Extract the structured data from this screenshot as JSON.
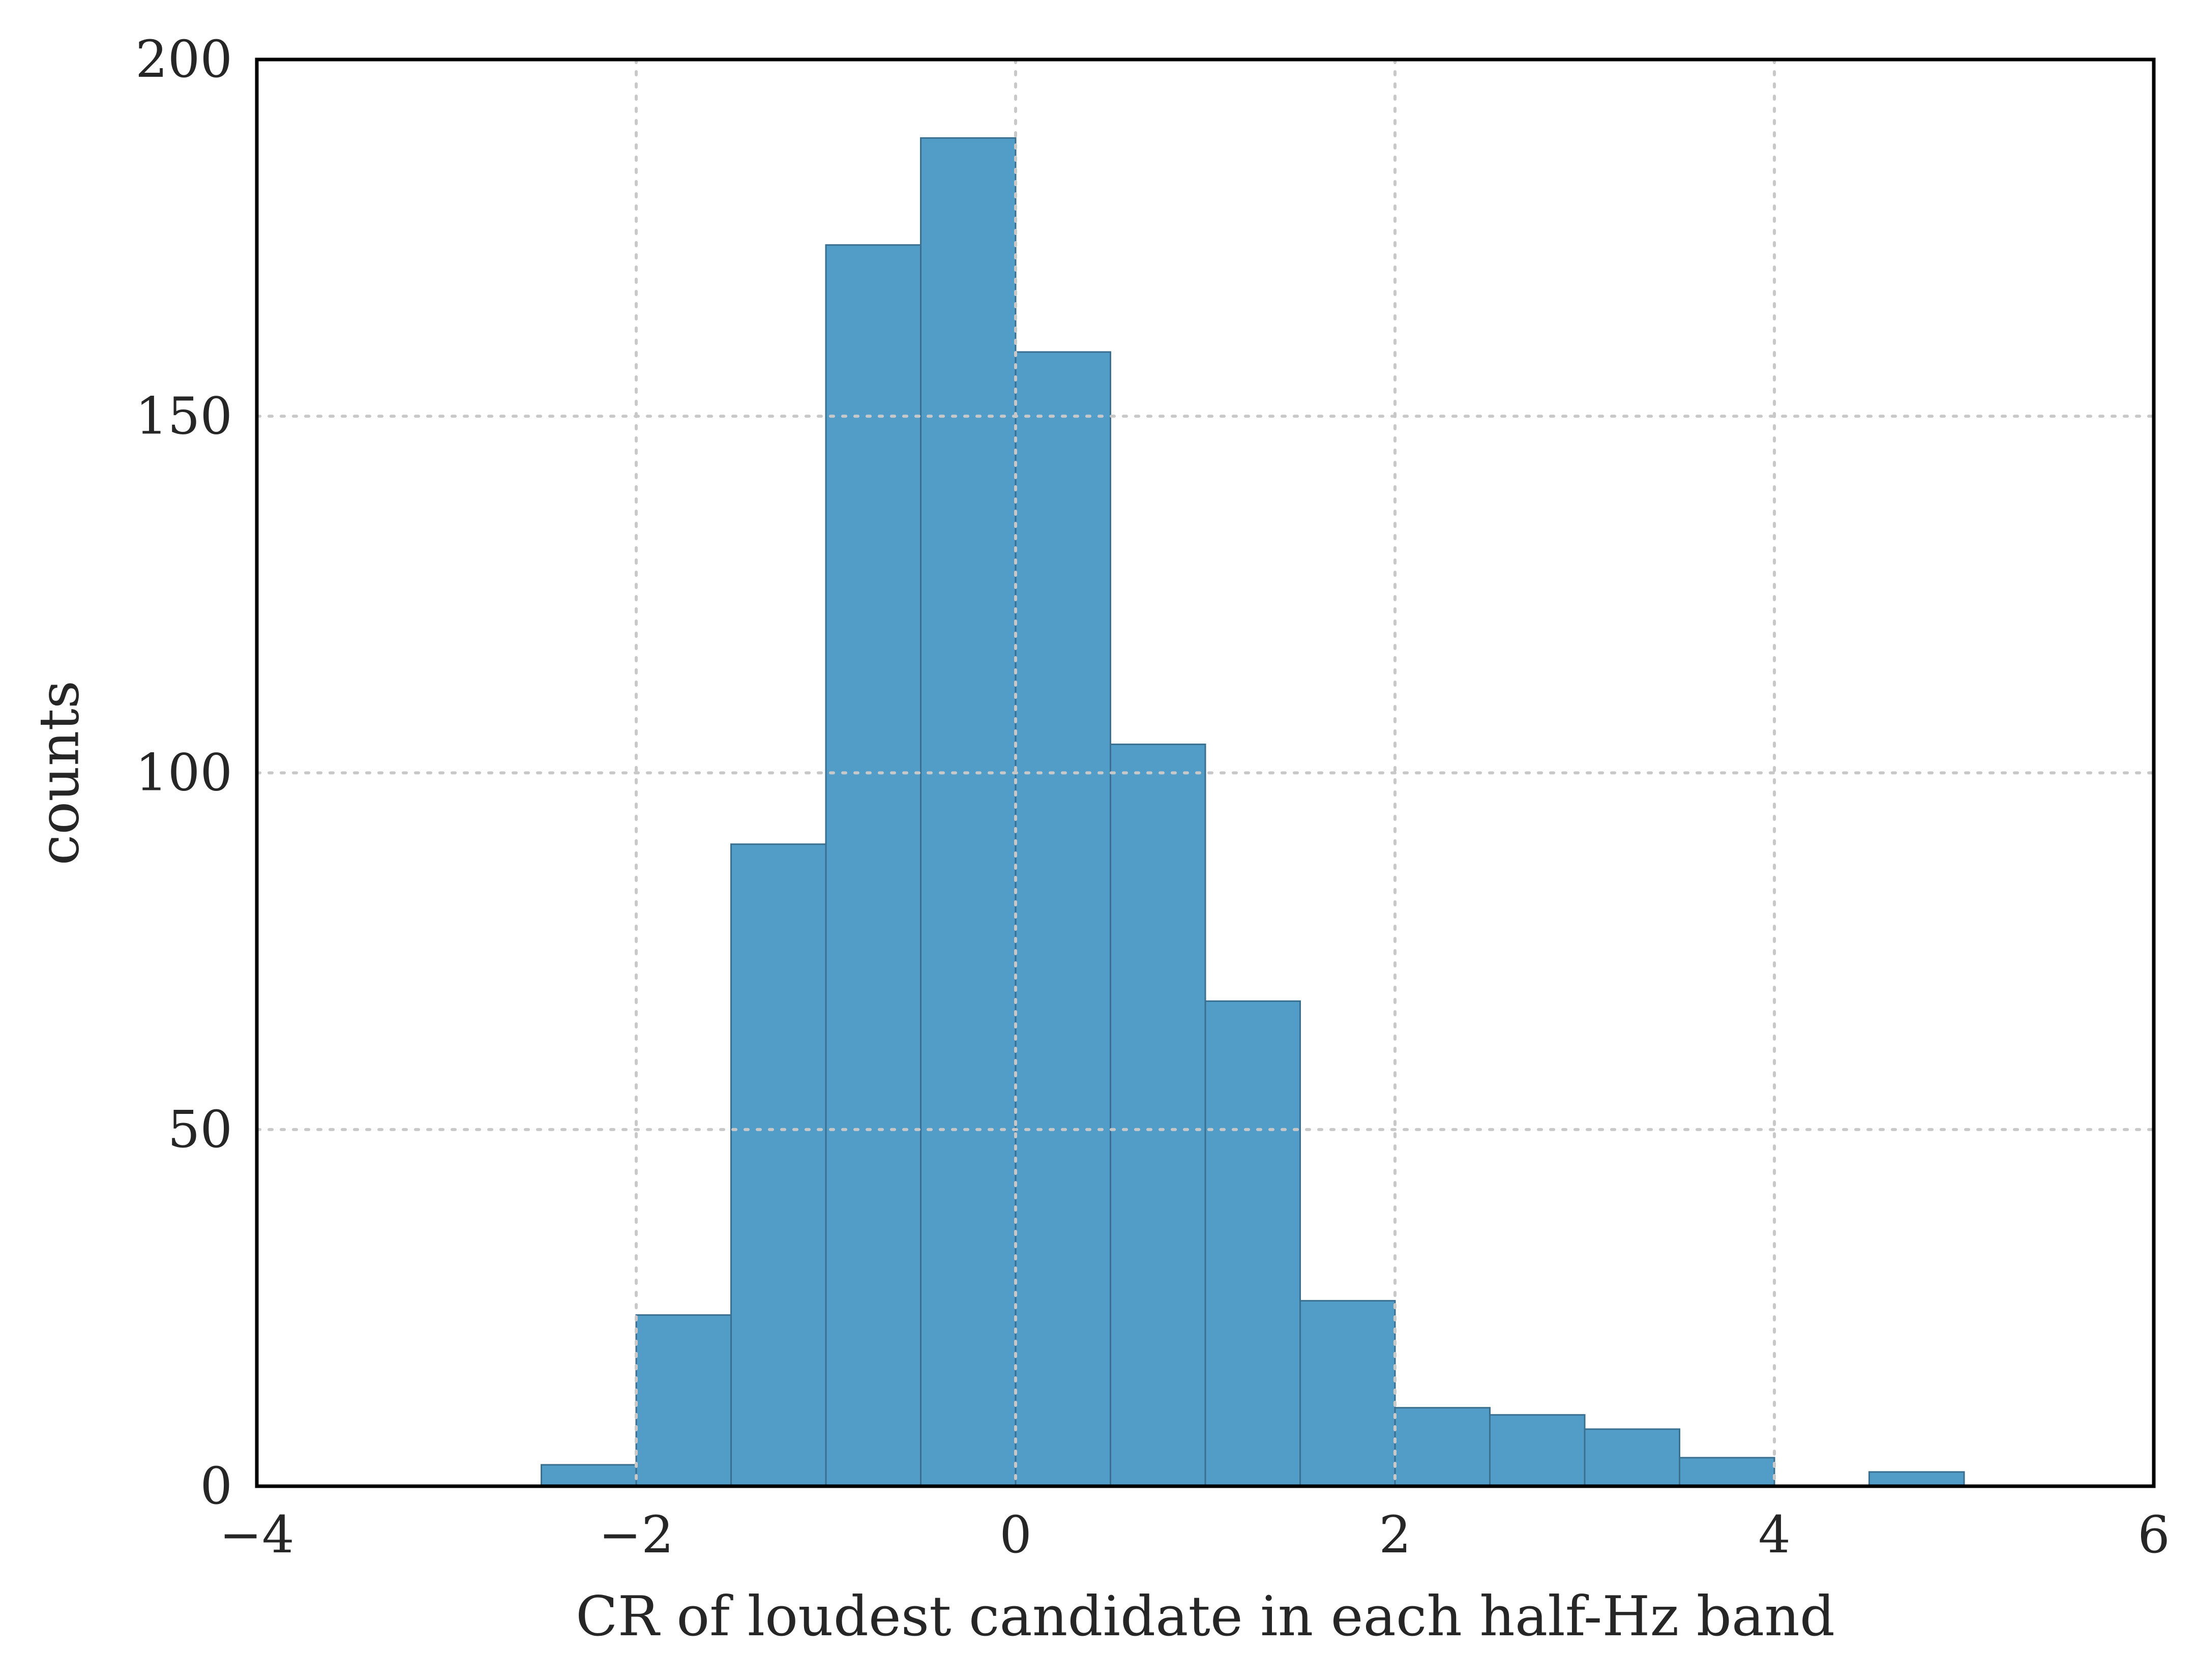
{
  "chart_data": {
    "type": "bar",
    "title": "",
    "xlabel": "CR of loudest candidate in each half-Hz band",
    "ylabel": "counts",
    "xlim": [
      -4,
      6
    ],
    "ylim": [
      0,
      200
    ],
    "grid": true,
    "bin_edges": [
      -2.5,
      -2.0,
      -1.5,
      -1.0,
      -0.5,
      0.0,
      0.5,
      1.0,
      1.5,
      2.0,
      2.5,
      3.0,
      3.5,
      4.0,
      4.5,
      5.0
    ],
    "values": [
      3,
      24,
      90,
      174,
      189,
      159,
      104,
      68,
      26,
      11,
      10,
      8,
      4,
      0,
      2
    ],
    "x_ticks": [
      -4,
      -2,
      0,
      2,
      4,
      6
    ],
    "x_tick_labels": [
      "−4",
      "−2",
      "0",
      "2",
      "4",
      "6"
    ],
    "y_ticks": [
      0,
      50,
      100,
      150,
      200
    ],
    "y_tick_labels": [
      "0",
      "50",
      "100",
      "150",
      "200"
    ],
    "bar_color": "#529dc8"
  }
}
